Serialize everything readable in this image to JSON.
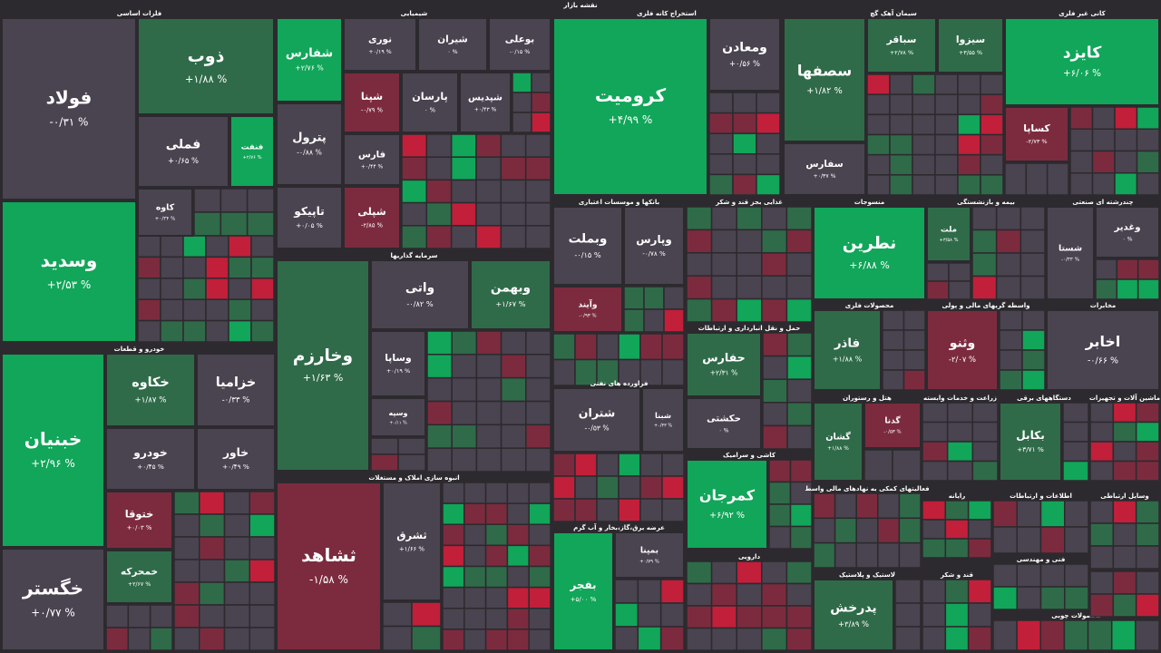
{
  "title": "نقشه بازار",
  "sectors": [
    {
      "title": "فلزات اساسی",
      "tiles": [
        {
          "name": "فولاد",
          "change": "-۰/۳۱ %",
          "color": "#4a4350"
        },
        {
          "name": "وسدید",
          "change": "+۲/۵۳ %",
          "color": "#11a659"
        },
        {
          "name": "ذوب",
          "change": "+۱/۸۸ %",
          "color": "#2f6b49"
        },
        {
          "name": "فملی",
          "change": "+۰/۶۵ %",
          "color": "#4a4350"
        },
        {
          "name": "فنفت",
          "change": "+۲/۷۶ %",
          "color": "#11a659"
        },
        {
          "name": "کاوه",
          "change": "+۰/۳۴ %",
          "color": "#4a4350"
        }
      ]
    },
    {
      "title": "خودرو و قطعات",
      "tiles": [
        {
          "name": "خبنیان",
          "change": "+۲/۹۶ %",
          "color": "#11a659"
        },
        {
          "name": "خگستر",
          "change": "+۰/۷۷ %",
          "color": "#4a4350"
        },
        {
          "name": "خکاوه",
          "change": "+۱/۸۷ %",
          "color": "#2f6b49"
        },
        {
          "name": "خزامیا",
          "change": "-۰/۳۳ %",
          "color": "#4a4350"
        },
        {
          "name": "خودرو",
          "change": "+۰/۴۵ %",
          "color": "#4a4350"
        },
        {
          "name": "خاور",
          "change": "+۰/۴۹ %",
          "color": "#4a4350"
        },
        {
          "name": "ختوقا",
          "change": "+۰/۰۳ %",
          "color": "#7c2b3e"
        },
        {
          "name": "خمحرکه",
          "change": "+۲/۶۷ %",
          "color": "#2f6b49"
        }
      ]
    },
    {
      "title": "شیمیایی",
      "tiles": [
        {
          "name": "شفارس",
          "change": "+۲/۷۶ %",
          "color": "#11a659"
        },
        {
          "name": "پترول",
          "change": "-۰/۸۸ %",
          "color": "#4a4350"
        },
        {
          "name": "تاپیکو",
          "change": "+۰/۰۵ %",
          "color": "#4a4350"
        },
        {
          "name": "نوری",
          "change": "+۰/۱۹ %",
          "color": "#4a4350"
        },
        {
          "name": "شیران",
          "change": "۰ %",
          "color": "#4a4350"
        },
        {
          "name": "بوعلی",
          "change": "-۰/۱۵ %",
          "color": "#4a4350"
        },
        {
          "name": "شپنا",
          "change": "-۰/۷۹ %",
          "color": "#7c2b3e"
        },
        {
          "name": "پارسان",
          "change": "۰ %",
          "color": "#4a4350"
        },
        {
          "name": "شپدیس",
          "change": "+۰/۴۳ %",
          "color": "#4a4350"
        },
        {
          "name": "فارس",
          "change": "+۰/۴۴ %",
          "color": "#4a4350"
        },
        {
          "name": "شپلی",
          "change": "-۲/۸۵ %",
          "color": "#7c2b3e"
        }
      ]
    },
    {
      "title": "سرمایه گذاریها",
      "tiles": [
        {
          "name": "وخارزم",
          "change": "+۱/۶۳ %",
          "color": "#2f6b49"
        },
        {
          "name": "واتی",
          "change": "-۰/۸۲ %",
          "color": "#4a4350"
        },
        {
          "name": "وبهمن",
          "change": "+۱/۶۷ %",
          "color": "#2f6b49"
        },
        {
          "name": "وساپا",
          "change": "+۰/۱۹ %",
          "color": "#4a4350"
        },
        {
          "name": "وسپه",
          "change": "+۰/۱۱ %",
          "color": "#4a4350"
        }
      ]
    },
    {
      "title": "انبوه سازی املاک و مستغلات",
      "tiles": [
        {
          "name": "ثشاهد",
          "change": "-۱/۵۸ %",
          "color": "#7c2b3e"
        },
        {
          "name": "ثشرق",
          "change": "+۱/۶۶ %",
          "color": "#4a4350"
        }
      ]
    },
    {
      "title": "استخراج کانه فلزی",
      "tiles": [
        {
          "name": "کرومیت",
          "change": "+۴/۹۹ %",
          "color": "#11a659"
        },
        {
          "name": "ومعادن",
          "change": "+۰/۵۶ %",
          "color": "#4a4350"
        }
      ]
    },
    {
      "title": "بانکها و موسسات اعتباری",
      "tiles": [
        {
          "name": "وبملت",
          "change": "-۰/۱۵ %",
          "color": "#4a4350"
        },
        {
          "name": "وپارس",
          "change": "-۰/۷۸ %",
          "color": "#4a4350"
        },
        {
          "name": "وآیند",
          "change": "-۰/۹۳ %",
          "color": "#7c2b3e"
        }
      ]
    },
    {
      "title": "غذایی بجز قند و شکر",
      "tiles": []
    },
    {
      "title": "حمل و نقل انبارداری و ارتباطات",
      "tiles": [
        {
          "name": "حفارس",
          "change": "+۲/۳۱ %",
          "color": "#2f6b49"
        },
        {
          "name": "حکشتی",
          "change": "۰ %",
          "color": "#4a4350"
        }
      ]
    },
    {
      "title": "فراورده های نفتی",
      "tiles": [
        {
          "name": "شتران",
          "change": "-۰/۵۳ %",
          "color": "#4a4350"
        },
        {
          "name": "شبنا",
          "change": "+۰/۳۳ %",
          "color": "#4a4350"
        }
      ]
    },
    {
      "title": "عرضه برق،گاز،بخار و آب گرم",
      "tiles": [
        {
          "name": "بفجر",
          "change": "+۵/۰۰ %",
          "color": "#11a659"
        },
        {
          "name": "بمپنا",
          "change": "+۰/۷۹ %",
          "color": "#4a4350"
        }
      ]
    },
    {
      "title": "کاشی و سرامیک",
      "tiles": [
        {
          "name": "کمرجان",
          "change": "+۶/۹۲ %",
          "color": "#11a659"
        }
      ]
    },
    {
      "title": "دارویی",
      "tiles": []
    },
    {
      "title": "سیمان آهک گچ",
      "tiles": [
        {
          "name": "سصفها",
          "change": "+۱/۸۲ %",
          "color": "#2f6b49"
        },
        {
          "name": "سفارس",
          "change": "+۰/۳۷ %",
          "color": "#4a4350"
        },
        {
          "name": "سباقر",
          "change": "+۲/۷۸ %",
          "color": "#2f6b49"
        },
        {
          "name": "سیزوا",
          "change": "+۳/۵۵ %",
          "color": "#2f6b49"
        }
      ]
    },
    {
      "title": "کانی غیر فلزی",
      "tiles": [
        {
          "name": "کایزد",
          "change": "+۶/۰۶ %",
          "color": "#11a659"
        },
        {
          "name": "کساپا",
          "change": "-۲/۷۳ %",
          "color": "#7c2b3e"
        }
      ]
    },
    {
      "title": "منسوجات",
      "tiles": [
        {
          "name": "نطرین",
          "change": "+۶/۸۸ %",
          "color": "#11a659"
        }
      ]
    },
    {
      "title": "بیمه و بازنشستگی",
      "tiles": [
        {
          "name": "ملت",
          "change": "+۳/۵۸ %",
          "color": "#2f6b49"
        }
      ]
    },
    {
      "title": "چندرشته ای صنعتی",
      "tiles": [
        {
          "name": "شستا",
          "change": "-۰/۳۳ %",
          "color": "#4a4350"
        },
        {
          "name": "وغدیر",
          "change": "۰ %",
          "color": "#4a4350"
        }
      ]
    },
    {
      "title": "محصولات فلزی",
      "tiles": [
        {
          "name": "فاذر",
          "change": "+۱/۸۸ %",
          "color": "#2f6b49"
        }
      ]
    },
    {
      "title": "واسطه گریهای مالی و پولی",
      "tiles": [
        {
          "name": "وثنو",
          "change": "-۲/۰۷ %",
          "color": "#7c2b3e"
        }
      ]
    },
    {
      "title": "مخابرات",
      "tiles": [
        {
          "name": "اخابر",
          "change": "-۰/۶۶ %",
          "color": "#4a4350"
        }
      ]
    },
    {
      "title": "هتل و رستوران",
      "tiles": [
        {
          "name": "گشان",
          "change": "+۱/۸۸ %",
          "color": "#2f6b49"
        },
        {
          "name": "گدنا",
          "change": "-۰/۵۳ %",
          "color": "#7c2b3e"
        }
      ]
    },
    {
      "title": "زراعت و خدمات وابسته",
      "tiles": []
    },
    {
      "title": "دستگاههای برقی",
      "tiles": [
        {
          "name": "بکابل",
          "change": "+۳/۷۱ %",
          "color": "#2f6b49"
        }
      ]
    },
    {
      "title": "ماشین آلات و تجهیزات",
      "tiles": []
    },
    {
      "title": "فعالیتهای کمکی به نهادهای مالی واسط",
      "tiles": []
    },
    {
      "title": "رایانه",
      "tiles": []
    },
    {
      "title": "اطلاعات و ارتباطات",
      "tiles": []
    },
    {
      "title": "وسایل ارتباطی",
      "tiles": []
    },
    {
      "title": "لاستیک و پلاستیک",
      "tiles": [
        {
          "name": "پدرخش",
          "change": "+۳/۸۹ %",
          "color": "#2f6b49"
        }
      ]
    },
    {
      "title": "قند و شکر",
      "tiles": []
    },
    {
      "title": "فنی و مهندسی",
      "tiles": []
    },
    {
      "title": "محصولات چوبی",
      "tiles": []
    }
  ]
}
